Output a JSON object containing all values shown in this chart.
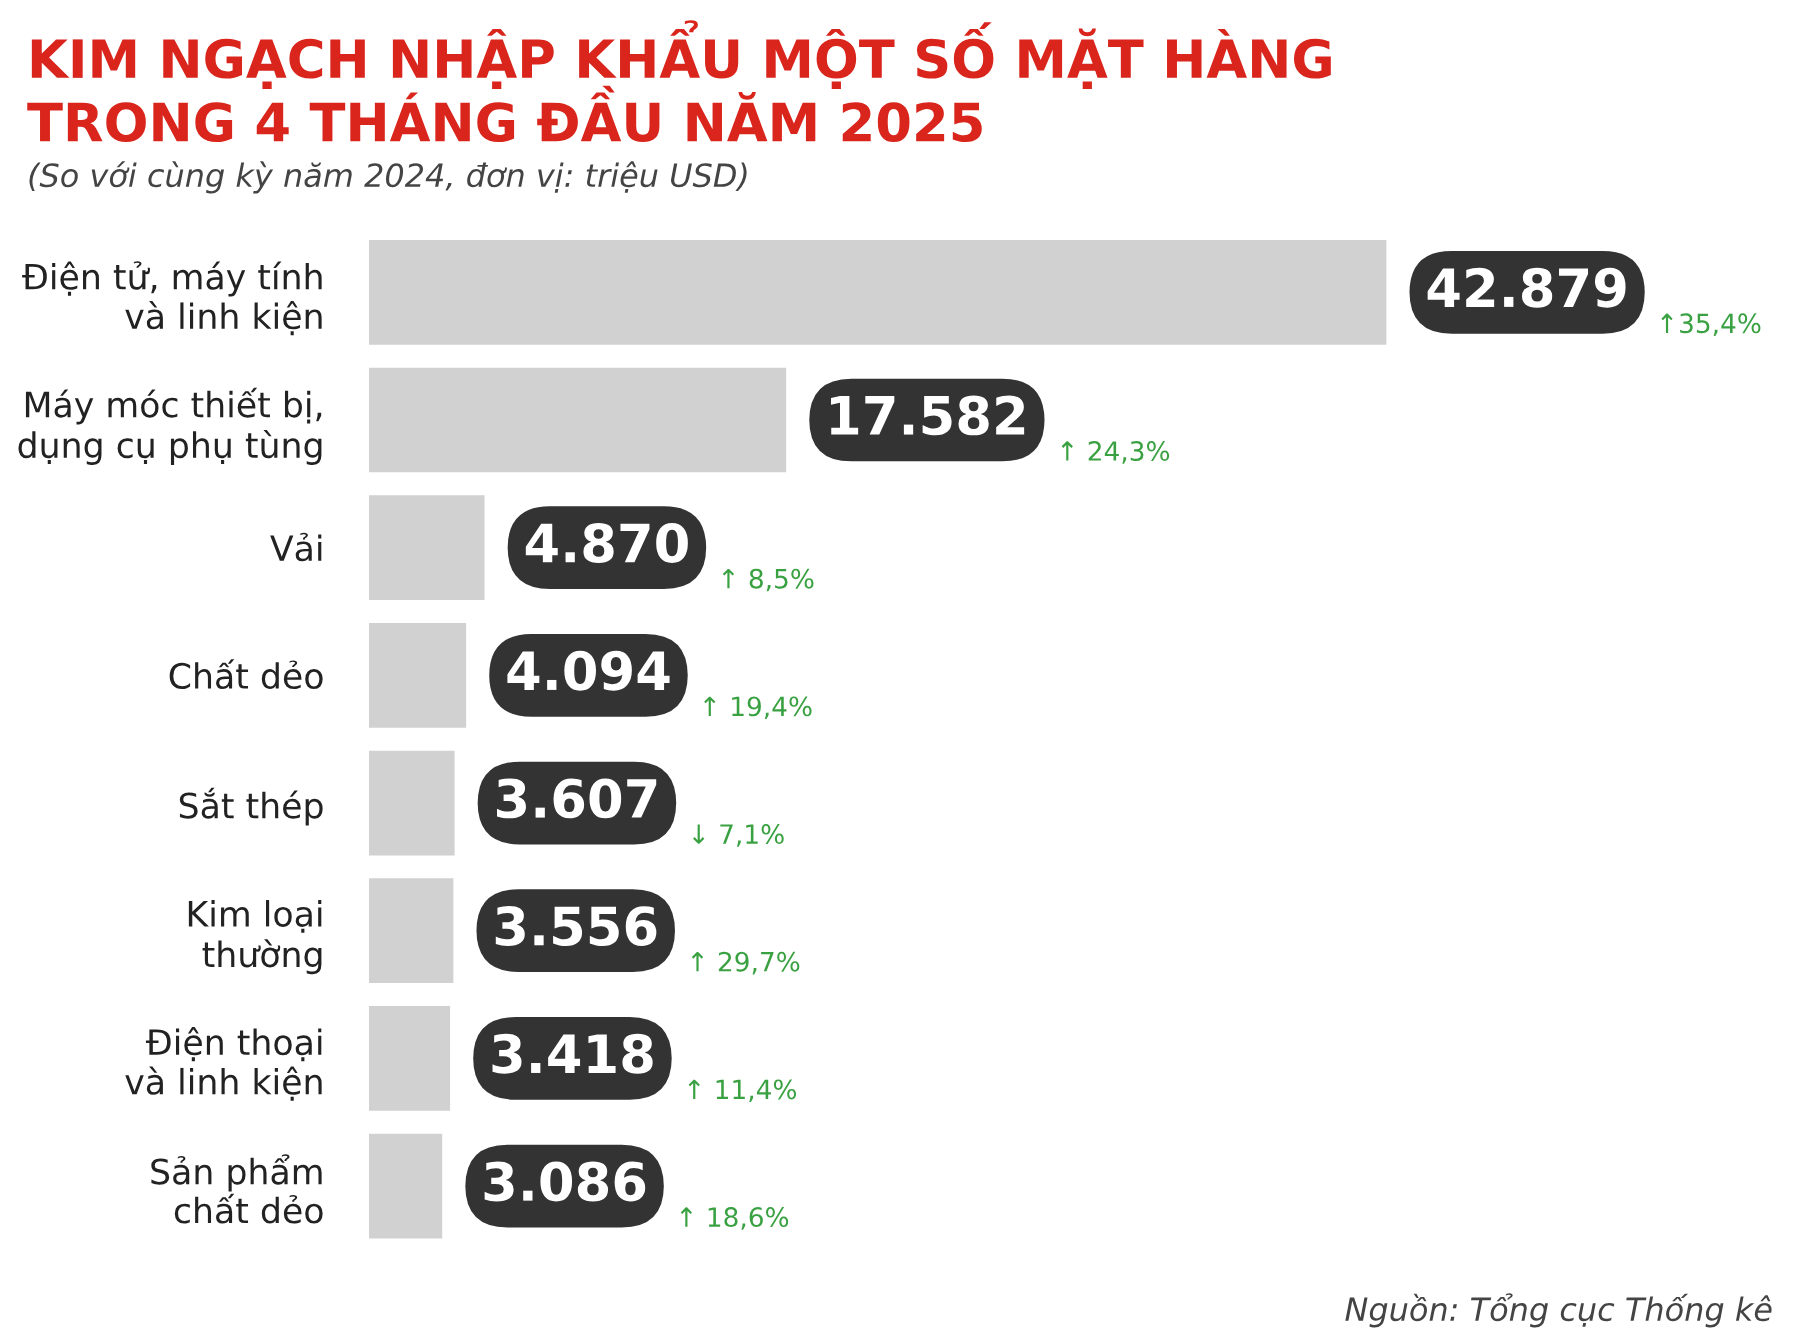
{
  "chart_data": {
    "type": "bar",
    "orientation": "horizontal",
    "title": "KIM NGẠCH NHẬP KHẨU MỘT SỐ MẶT HÀNG\nTRONG 4 THÁNG ĐẦU NĂM 2025",
    "subtitle": "(So với cùng kỳ năm 2024, đơn vị: triệu USD)",
    "categories": [
      "Điện tử, máy tính\nvà linh kiện",
      "Máy móc thiết bị,\ndụng cụ phụ tùng",
      "Vải",
      "Chất dẻo",
      "Sắt thép",
      "Kim loại\nthường",
      "Điện thoại\nvà linh kiện",
      "Sản phẩm\nchất dẻo"
    ],
    "values": [
      42879,
      17582,
      4870,
      4094,
      3607,
      3556,
      3418,
      3086
    ],
    "value_labels": [
      "42.879",
      "17.582",
      "4.870",
      "4.094",
      "3.607",
      "3.556",
      "3.418",
      "3.086"
    ],
    "color": "#d1d1d1",
    "annotations": [
      "↑35,4%",
      "↑ 24,3%",
      "↑ 8,5%",
      "↑ 19,4%",
      "↓ 7,1%",
      "↑ 29,7%",
      "↑ 11,4%",
      "↑ 18,6%",
      "Nguồn: Tổng cục Thống kê"
    ]
  }
}
